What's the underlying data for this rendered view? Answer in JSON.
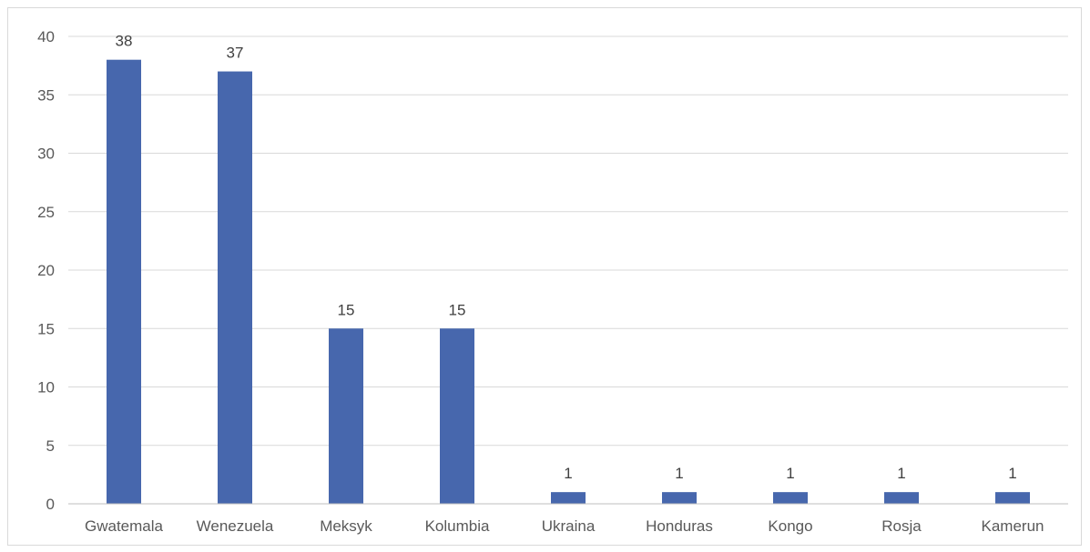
{
  "chart_data": {
    "type": "bar",
    "title": "",
    "xlabel": "",
    "ylabel": "",
    "categories": [
      "Gwatemala",
      "Wenezuela",
      "Meksyk",
      "Kolumbia",
      "Ukraina",
      "Honduras",
      "Kongo",
      "Rosja",
      "Kamerun"
    ],
    "values": [
      38,
      37,
      15,
      15,
      1,
      1,
      1,
      1,
      1
    ],
    "ylim": [
      0,
      40
    ],
    "yticks": [
      0,
      5,
      10,
      15,
      20,
      25,
      30,
      35,
      40
    ],
    "grid": true,
    "legend": "none",
    "data_labels": true,
    "bar_color": "#4767ad"
  }
}
